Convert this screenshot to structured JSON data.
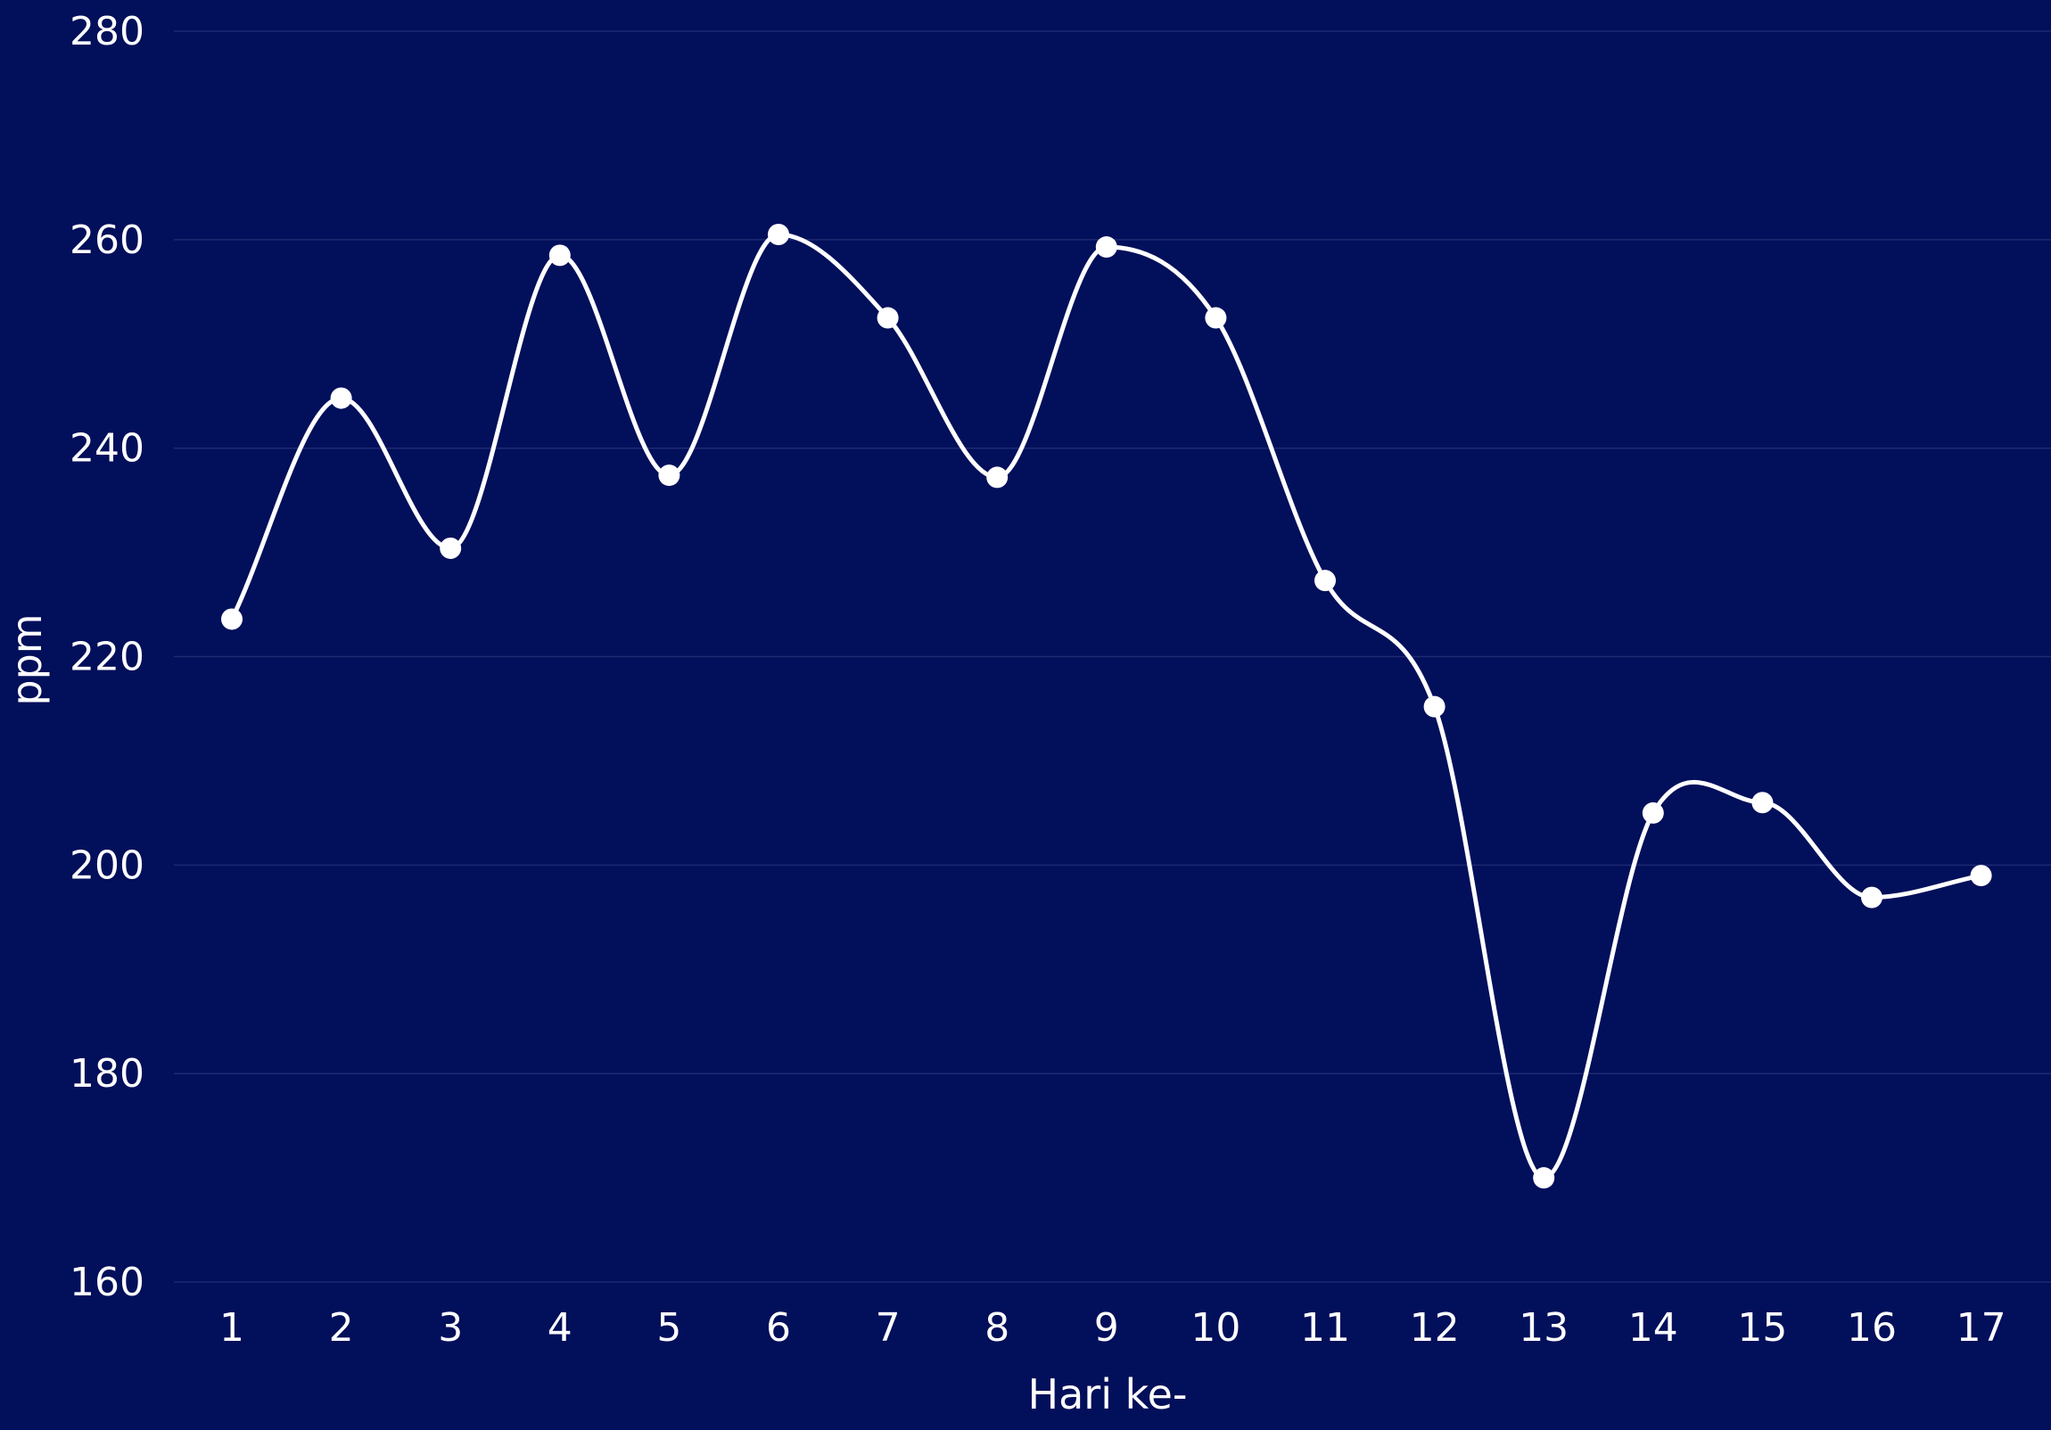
{
  "colors": {
    "background": "#020f5a",
    "grid": "#1d2a72",
    "line": "#ffffff",
    "marker": "#ffffff",
    "text": "#ffffff"
  },
  "chart_data": {
    "type": "line",
    "title": "",
    "xlabel": "Hari ke-",
    "ylabel": "ppm",
    "categories": [
      "1",
      "2",
      "3",
      "4",
      "5",
      "6",
      "7",
      "8",
      "9",
      "10",
      "11",
      "12",
      "13",
      "14",
      "15",
      "16",
      "17"
    ],
    "series": [
      {
        "values": [
          223.6,
          244.8,
          230.4,
          258.5,
          237.4,
          260.5,
          252.5,
          237.2,
          259.3,
          252.5,
          227.3,
          215.2,
          170.0,
          205.0,
          206.0,
          196.9,
          199.0
        ]
      }
    ],
    "ylim": [
      150,
      280
    ],
    "yticks": [
      160,
      180,
      200,
      220,
      240,
      260,
      280
    ],
    "grid": "horizontal",
    "legend": "none",
    "curve": "smooth",
    "markers": "circle"
  }
}
